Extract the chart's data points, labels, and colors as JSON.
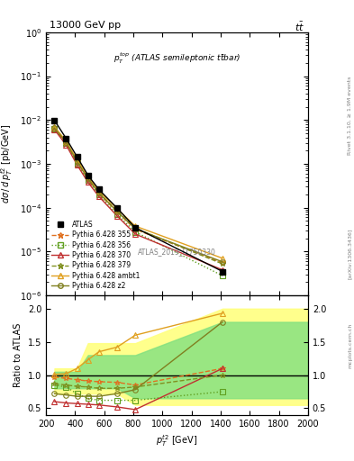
{
  "title_left": "13000 GeV pp",
  "title_right": "tt",
  "ylabel_main": "dσ / d p_T^{t2} [pb/GeV]",
  "ylabel_ratio": "Ratio to ATLAS",
  "xlabel": "p_T^{t2} [GeV]",
  "annotation_main": "p_T^{top} (ATLAS semileptonic ttbar)",
  "annotation_ref": "ATLAS_2019_I1750330",
  "rivet_text": "Rivet 3.1.10, ≥ 1.9M events",
  "arxiv_text": "[arXiv:1306.3436]",
  "mcplots_text": "mcplots.cern.ch",
  "xlim": [
    200,
    2000
  ],
  "ylim_main": [
    1e-06,
    1.0
  ],
  "ylim_ratio": [
    0.4,
    2.2
  ],
  "ratio_yticks": [
    0.5,
    1.0,
    1.5,
    2.0
  ],
  "ATLAS": {
    "x": [
      258,
      338,
      413,
      488,
      563,
      688,
      813,
      1413
    ],
    "y": [
      0.0098,
      0.0038,
      0.00145,
      0.00055,
      0.00026,
      9.8e-05,
      3.5e-05,
      3.5e-06
    ],
    "color": "#000000",
    "marker": "s",
    "label": "ATLAS"
  },
  "p355": {
    "x": [
      258,
      338,
      413,
      488,
      563,
      688,
      813,
      1413
    ],
    "y": [
      0.0063,
      0.003,
      0.0011,
      0.00045,
      0.00021,
      8e-05,
      3.2e-05,
      5.5e-06
    ],
    "ratio": [
      0.97,
      0.95,
      0.93,
      0.91,
      0.9,
      0.89,
      0.85,
      1.1
    ],
    "color": "#e07020",
    "marker": "*",
    "linestyle": "--",
    "label": "Pythia 6.428 355"
  },
  "p356": {
    "x": [
      258,
      338,
      413,
      488,
      563,
      688,
      813,
      1413
    ],
    "y": [
      0.0063,
      0.003,
      0.001,
      0.00042,
      0.000195,
      7e-05,
      2.8e-05,
      2.8e-06
    ],
    "ratio": [
      0.85,
      0.82,
      0.72,
      0.65,
      0.62,
      0.62,
      0.62,
      0.75
    ],
    "color": "#60a020",
    "marker": "s",
    "linestyle": ":",
    "label": "Pythia 6.428 356"
  },
  "p370": {
    "x": [
      258,
      338,
      413,
      488,
      563,
      688,
      813,
      1413
    ],
    "y": [
      0.006,
      0.0027,
      0.00095,
      0.00038,
      0.00018,
      6.5e-05,
      2.5e-05,
      3.8e-06
    ],
    "ratio": [
      0.6,
      0.58,
      0.57,
      0.56,
      0.55,
      0.52,
      0.48,
      1.1
    ],
    "color": "#c03030",
    "marker": "^",
    "linestyle": "-",
    "label": "Pythia 6.428 370"
  },
  "p379": {
    "x": [
      258,
      338,
      413,
      488,
      563,
      688,
      813,
      1413
    ],
    "y": [
      0.0068,
      0.0032,
      0.00115,
      0.00048,
      0.00022,
      8.5e-05,
      3.4e-05,
      5.2e-06
    ],
    "ratio": [
      0.87,
      0.85,
      0.83,
      0.82,
      0.8,
      0.8,
      0.82,
      1.0
    ],
    "color": "#809020",
    "marker": "*",
    "linestyle": "--",
    "label": "Pythia 6.428 379"
  },
  "pambt1": {
    "x": [
      258,
      338,
      413,
      488,
      563,
      688,
      813,
      1413
    ],
    "y": [
      0.007,
      0.0033,
      0.00125,
      0.00052,
      0.00024,
      9.5e-05,
      3.8e-05,
      7e-06
    ],
    "ratio": [
      1.01,
      1.02,
      1.1,
      1.23,
      1.35,
      1.42,
      1.6,
      1.93
    ],
    "color": "#e0a020",
    "marker": "^",
    "linestyle": "-",
    "label": "Pythia 6.428 ambt1"
  },
  "pz2": {
    "x": [
      258,
      338,
      413,
      488,
      563,
      688,
      813,
      1413
    ],
    "y": [
      0.0065,
      0.0031,
      0.00112,
      0.00046,
      0.000215,
      8.2e-05,
      3.3e-05,
      5.8e-06
    ],
    "ratio": [
      0.72,
      0.7,
      0.68,
      0.68,
      0.68,
      0.72,
      0.78,
      1.8
    ],
    "color": "#808020",
    "marker": "o",
    "linestyle": "-",
    "label": "Pythia 6.428 z2"
  },
  "band_yellow_x": [
    258,
    338,
    413,
    488,
    563,
    688,
    813,
    1413,
    2000
  ],
  "band_yellow_ylo": [
    0.72,
    0.72,
    0.72,
    0.72,
    0.72,
    0.72,
    0.55,
    0.55,
    0.55
  ],
  "band_yellow_yhi": [
    1.1,
    1.1,
    1.1,
    1.48,
    1.48,
    1.48,
    1.48,
    2.0,
    2.0
  ],
  "band_green_x": [
    258,
    338,
    413,
    488,
    563,
    688,
    813,
    1413,
    2000
  ],
  "band_green_ylo": [
    0.8,
    0.8,
    0.8,
    0.8,
    0.8,
    0.8,
    0.65,
    0.65,
    0.65
  ],
  "band_green_yhi": [
    1.05,
    1.05,
    1.05,
    1.3,
    1.3,
    1.3,
    1.3,
    1.8,
    1.8
  ]
}
